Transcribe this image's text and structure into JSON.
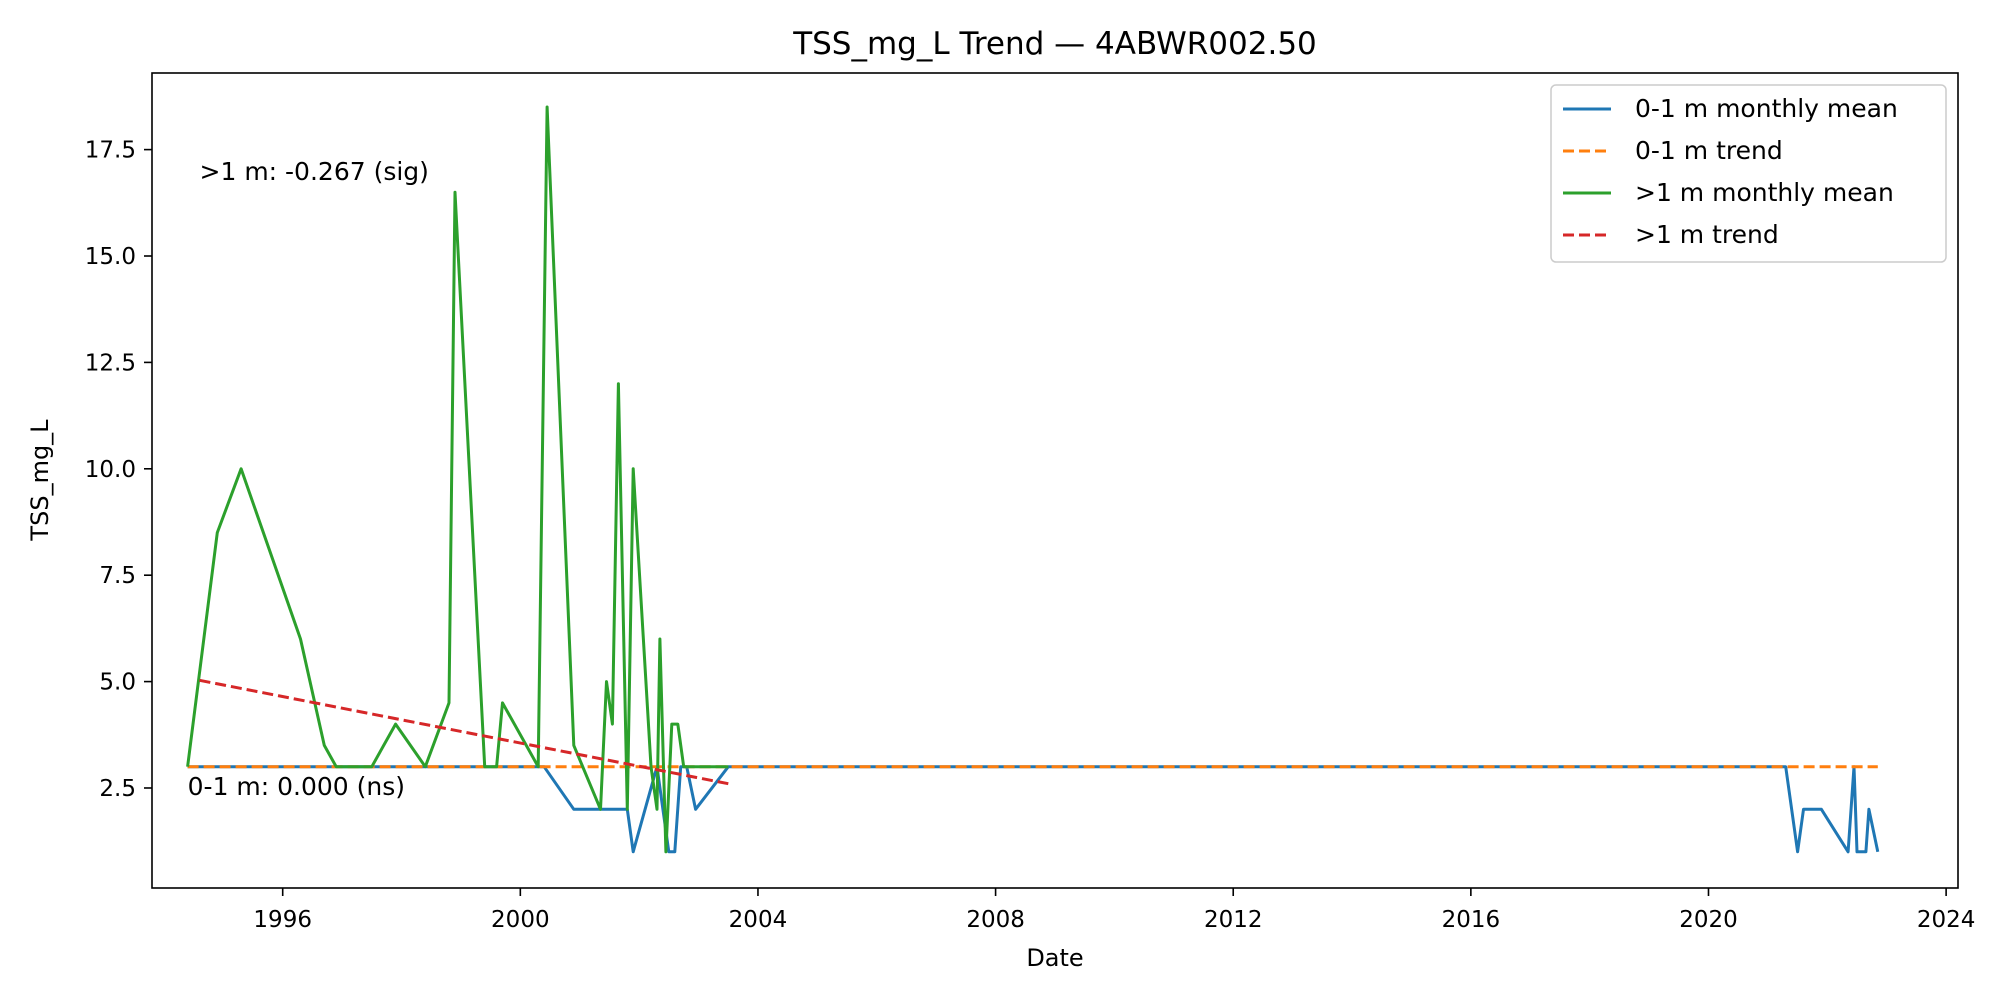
{
  "chart_data": {
    "type": "line",
    "title": "TSS_mg_L Trend — 4ABWR002.50",
    "xlabel": "Date",
    "ylabel": "TSS_mg_L",
    "xlim": [
      1993.8,
      2024.2
    ],
    "ylim": [
      0.15,
      19.3
    ],
    "x_ticks": [
      1996,
      2000,
      2004,
      2008,
      2012,
      2016,
      2020,
      2024
    ],
    "y_ticks": [
      2.5,
      5.0,
      7.5,
      10.0,
      12.5,
      15.0,
      17.5
    ],
    "y_tick_labels": [
      "2.5",
      "5.0",
      "7.5",
      "10.0",
      "12.5",
      "15.0",
      "17.5"
    ],
    "grid": false,
    "legend_position": "top-right",
    "annotations": [
      {
        "text": ">1 m: -0.267 (sig)",
        "x": 1994.6,
        "y": 17.0
      },
      {
        "text": "0-1 m: 0.000 (ns)",
        "x": 1994.4,
        "y": 2.55
      }
    ],
    "series": [
      {
        "name": "0-1 m monthly mean",
        "color": "#1f77b4",
        "style": "solid",
        "x": [
          1994.4,
          1994.6,
          2000.4,
          2000.9,
          2001.3,
          2001.7,
          2001.8,
          2001.9,
          2002.3,
          2002.5,
          2002.6,
          2002.7,
          2002.8,
          2002.95,
          2003.5,
          2021.3,
          2021.5,
          2021.6,
          2021.75,
          2021.9,
          2022.35,
          2022.45,
          2022.5,
          2022.65,
          2022.7,
          2022.85
        ],
        "values": [
          3,
          3,
          3,
          2,
          2,
          2,
          2,
          1,
          3,
          1,
          1,
          3,
          3,
          2,
          3,
          3,
          1,
          2,
          2,
          2,
          1,
          3,
          1,
          1,
          2,
          1
        ]
      },
      {
        "name": "0-1 m trend",
        "color": "#ff7f0e",
        "style": "dashed",
        "x": [
          1994.4,
          2022.85
        ],
        "values": [
          3.0,
          3.0
        ]
      },
      {
        "name": ">1 m monthly mean",
        "color": "#2ca02c",
        "style": "solid",
        "x": [
          1994.4,
          1994.9,
          1995.3,
          1996.3,
          1996.7,
          1996.9,
          1997.5,
          1997.9,
          1998.4,
          1998.8,
          1998.9,
          1999.4,
          1999.6,
          1999.7,
          2000.3,
          2000.45,
          2000.9,
          2001.35,
          2001.45,
          2001.55,
          2001.65,
          2001.8,
          2001.9,
          2002.2,
          2002.3,
          2002.35,
          2002.45,
          2002.55,
          2002.65,
          2002.75,
          2003.0,
          2003.5
        ],
        "values": [
          3,
          8.5,
          10,
          6,
          3.5,
          3,
          3,
          4,
          3,
          4.5,
          16.5,
          3,
          3,
          4.5,
          3,
          18.5,
          3.5,
          2,
          5,
          4,
          12,
          2,
          10,
          3,
          2,
          6,
          1,
          4,
          4,
          3,
          3,
          3
        ]
      },
      {
        "name": ">1 m trend",
        "color": "#d62728",
        "style": "dashed",
        "x": [
          1994.6,
          2003.5
        ],
        "values": [
          5.03,
          2.6
        ]
      }
    ]
  }
}
